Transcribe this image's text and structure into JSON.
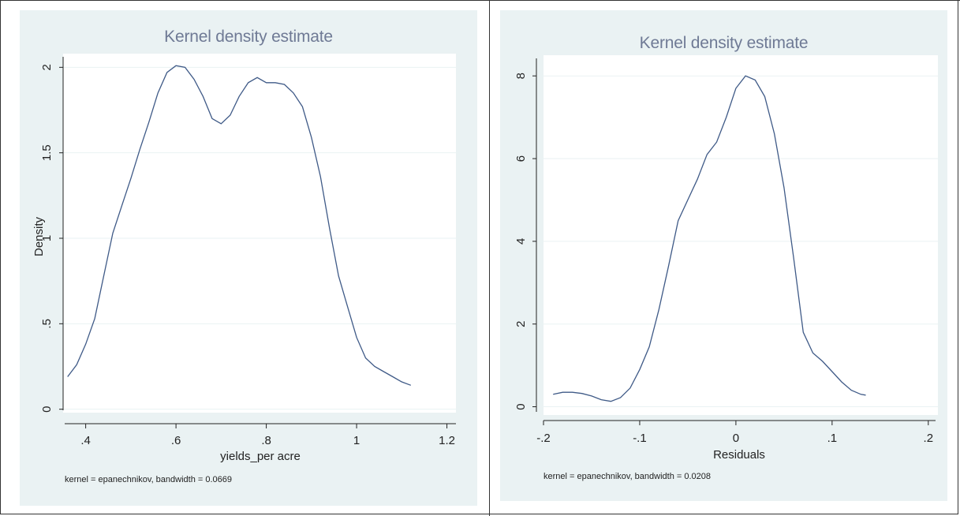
{
  "chart_data": [
    {
      "type": "line",
      "title": "Kernel density estimate",
      "xlabel": "yields_per acre",
      "ylabel": "Density",
      "xlim": [
        0.35,
        1.22
      ],
      "ylim": [
        -0.02,
        2.08
      ],
      "xticks": [
        0.4,
        0.6,
        0.8,
        1,
        1.2
      ],
      "xtick_labels": [
        ".4",
        ".6",
        ".8",
        "1",
        "1.2"
      ],
      "yticks": [
        0,
        0.5,
        1,
        1.5,
        2
      ],
      "ytick_labels": [
        "0",
        ".5",
        "1",
        "1.5",
        "2"
      ],
      "grid": "horizontal",
      "note": "kernel = epanechnikov, bandwidth = 0.0669",
      "color": "#3f5a87",
      "x": [
        0.36,
        0.38,
        0.4,
        0.42,
        0.44,
        0.46,
        0.48,
        0.5,
        0.52,
        0.54,
        0.56,
        0.58,
        0.6,
        0.62,
        0.64,
        0.66,
        0.68,
        0.7,
        0.72,
        0.74,
        0.76,
        0.78,
        0.8,
        0.82,
        0.84,
        0.86,
        0.88,
        0.9,
        0.92,
        0.94,
        0.96,
        0.98,
        1.0,
        1.02,
        1.04,
        1.06,
        1.08,
        1.1,
        1.12
      ],
      "y": [
        0.19,
        0.26,
        0.38,
        0.53,
        0.78,
        1.03,
        1.19,
        1.35,
        1.52,
        1.68,
        1.85,
        1.97,
        2.01,
        2.0,
        1.93,
        1.83,
        1.7,
        1.67,
        1.72,
        1.83,
        1.91,
        1.94,
        1.91,
        1.91,
        1.9,
        1.85,
        1.77,
        1.59,
        1.36,
        1.06,
        0.78,
        0.6,
        0.42,
        0.3,
        0.25,
        0.22,
        0.19,
        0.16,
        0.14
      ]
    },
    {
      "type": "line",
      "title": "Kernel density estimate",
      "xlabel": "Residuals",
      "ylabel": "",
      "xlim": [
        -0.2,
        0.21
      ],
      "ylim": [
        -0.2,
        8.5
      ],
      "xticks": [
        -0.2,
        -0.1,
        0,
        0.1,
        0.2
      ],
      "xtick_labels": [
        "-.2",
        "-.1",
        "0",
        ".1",
        ".2"
      ],
      "yticks": [
        0,
        2,
        4,
        6,
        8
      ],
      "ytick_labels": [
        "0",
        "2",
        "4",
        "6",
        "8"
      ],
      "grid": "horizontal",
      "note": "kernel = epanechnikov, bandwidth = 0.0208",
      "color": "#3f5a87",
      "x": [
        -0.19,
        -0.18,
        -0.17,
        -0.16,
        -0.15,
        -0.14,
        -0.13,
        -0.12,
        -0.11,
        -0.1,
        -0.09,
        -0.08,
        -0.07,
        -0.06,
        -0.05,
        -0.04,
        -0.03,
        -0.02,
        -0.01,
        0.0,
        0.01,
        0.02,
        0.03,
        0.04,
        0.05,
        0.06,
        0.07,
        0.08,
        0.09,
        0.1,
        0.11,
        0.12,
        0.13,
        0.135
      ],
      "y": [
        0.3,
        0.35,
        0.35,
        0.32,
        0.26,
        0.17,
        0.13,
        0.22,
        0.45,
        0.9,
        1.45,
        2.35,
        3.4,
        4.5,
        5.0,
        5.5,
        6.1,
        6.4,
        7.0,
        7.7,
        8.0,
        7.9,
        7.5,
        6.6,
        5.3,
        3.6,
        1.8,
        1.3,
        1.1,
        0.85,
        0.6,
        0.4,
        0.3,
        0.28
      ]
    }
  ]
}
